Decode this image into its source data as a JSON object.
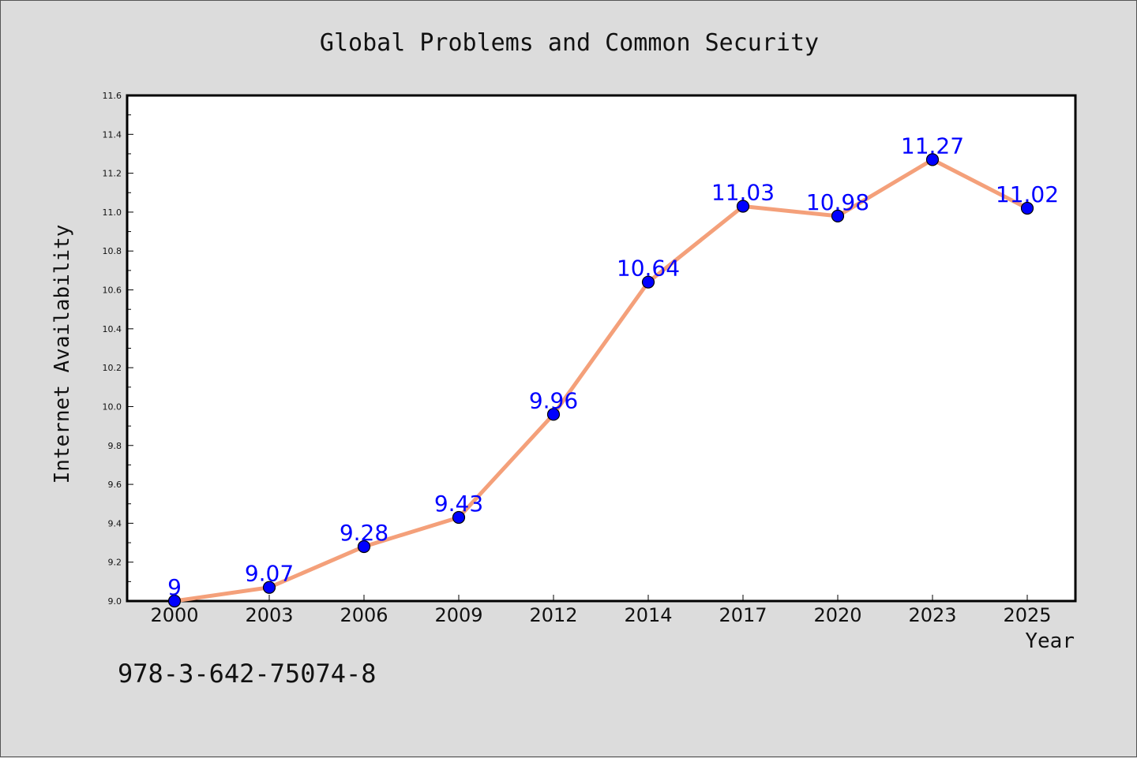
{
  "footer": {
    "isbn": "978-3-642-75074-8"
  },
  "chart_data": {
    "type": "line",
    "title": "Global Problems and Common Security",
    "xlabel": "Year",
    "ylabel": "Internet Availability",
    "categories": [
      "2000",
      "2003",
      "2006",
      "2009",
      "2012",
      "2014",
      "2017",
      "2020",
      "2023",
      "2025"
    ],
    "series": [
      {
        "values": [
          9,
          9.07,
          9.28,
          9.43,
          9.96,
          10.64,
          11.03,
          10.98,
          11.27,
          11.02
        ],
        "labels": [
          "9",
          "9.07",
          "9.28",
          "9.43",
          "9.96",
          "10.64",
          "11.03",
          "10.98",
          "11.27",
          "11.02"
        ],
        "line_color": "#f4a07a",
        "marker_color": "#0000ff"
      }
    ],
    "ylim": [
      9.0,
      11.6
    ],
    "yticks": [
      "9.0",
      "9.2",
      "9.4",
      "9.6",
      "9.8",
      "10.0",
      "10.2",
      "10.4",
      "10.6",
      "10.8",
      "11.0",
      "11.2",
      "11.4",
      "11.6"
    ],
    "grid": false,
    "legend": "none",
    "background": "#dcdcdc",
    "plot_background": "#ffffff"
  }
}
